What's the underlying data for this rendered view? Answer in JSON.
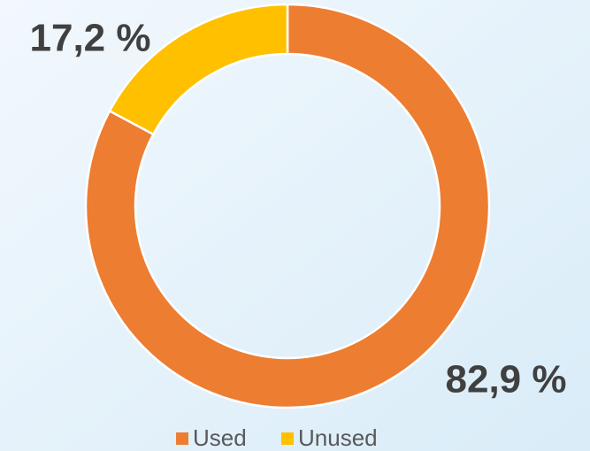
{
  "chart_data": {
    "type": "pie",
    "donut": true,
    "categories": [
      "Used",
      "Unused"
    ],
    "values": [
      82.9,
      17.2
    ],
    "value_labels": [
      "82,9 %",
      "17,2 %"
    ],
    "colors": [
      "#ed7d31",
      "#ffc000"
    ],
    "legend": "bottom"
  }
}
